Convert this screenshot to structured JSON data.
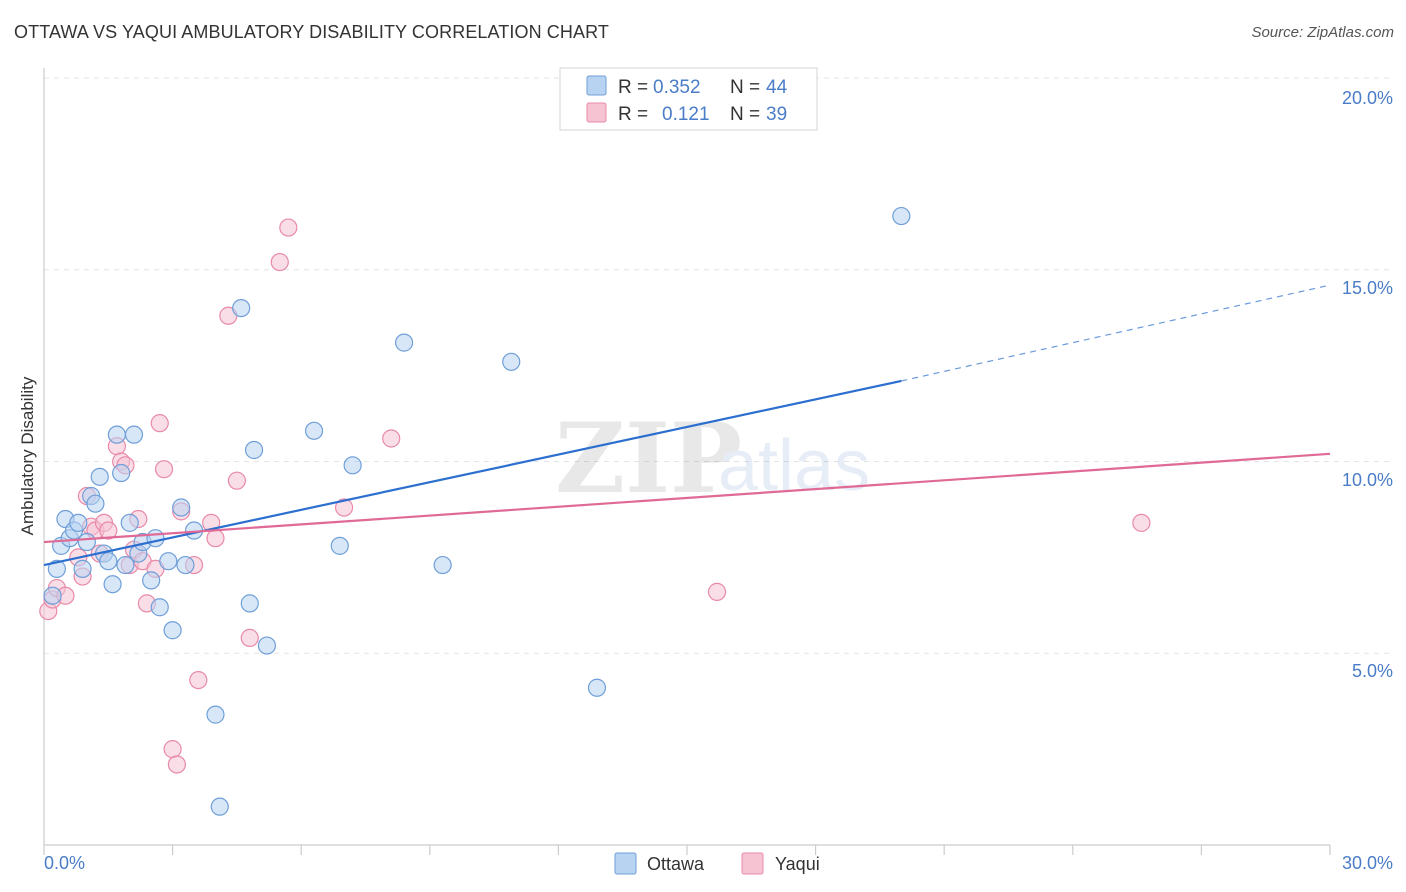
{
  "title": "OTTAWA VS YAQUI AMBULATORY DISABILITY CORRELATION CHART",
  "source": "Source: ZipAtlas.com",
  "watermark": {
    "zip": "ZIP",
    "atlas": "atlas"
  },
  "legend": {
    "r_label": "R =",
    "n_label": "N =",
    "entries": [
      {
        "name": "Ottawa",
        "r": "0.352",
        "n": "44"
      },
      {
        "name": "Yaqui",
        "r": "0.121",
        "n": "39"
      }
    ]
  },
  "colors": {
    "ottawa_fill": "#b8d3f2",
    "ottawa_stroke": "#6f9fd8",
    "ottawa_line": "#2c6fcf",
    "yaqui_fill": "#f6c3d3",
    "yaqui_stroke": "#e88aa8",
    "yaqui_line": "#e06a96",
    "tick_label": "#4a7cc7"
  },
  "chart_data": {
    "type": "scatter",
    "title": "OTTAWA VS YAQUI AMBULATORY DISABILITY CORRELATION CHART",
    "xlabel": "",
    "ylabel": "Ambulatory Disability",
    "xlim": [
      0,
      30
    ],
    "ylim": [
      0,
      20
    ],
    "x_tick_labels": [
      {
        "value": 0,
        "label": "0.0%"
      },
      {
        "value": 30,
        "label": "30.0%"
      }
    ],
    "y_tick_labels": [
      {
        "value": 5,
        "label": "5.0%"
      },
      {
        "value": 10,
        "label": "10.0%"
      },
      {
        "value": 15,
        "label": "15.0%"
      },
      {
        "value": 20,
        "label": "20.0%"
      }
    ],
    "series": [
      {
        "name": "Ottawa",
        "trend": {
          "x0": 0,
          "y0": 7.3,
          "x1": 20.0,
          "y1": 12.1,
          "dashed_to_x": 30,
          "dashed_to_y": 14.6
        },
        "points": [
          [
            0.2,
            6.5
          ],
          [
            0.3,
            7.2
          ],
          [
            0.4,
            7.8
          ],
          [
            0.5,
            8.5
          ],
          [
            0.6,
            8.0
          ],
          [
            0.7,
            8.2
          ],
          [
            0.8,
            8.4
          ],
          [
            0.9,
            7.2
          ],
          [
            1.0,
            7.9
          ],
          [
            1.1,
            9.1
          ],
          [
            1.2,
            8.9
          ],
          [
            1.3,
            9.6
          ],
          [
            1.4,
            7.6
          ],
          [
            1.5,
            7.4
          ],
          [
            1.6,
            6.8
          ],
          [
            1.7,
            10.7
          ],
          [
            1.8,
            9.7
          ],
          [
            1.9,
            7.3
          ],
          [
            2.0,
            8.4
          ],
          [
            2.1,
            10.7
          ],
          [
            2.2,
            7.6
          ],
          [
            2.3,
            7.9
          ],
          [
            2.5,
            6.9
          ],
          [
            2.6,
            8.0
          ],
          [
            2.7,
            6.2
          ],
          [
            2.9,
            7.4
          ],
          [
            3.0,
            5.6
          ],
          [
            3.2,
            8.8
          ],
          [
            3.3,
            7.3
          ],
          [
            3.5,
            8.2
          ],
          [
            4.0,
            3.4
          ],
          [
            4.6,
            14.0
          ],
          [
            4.8,
            6.3
          ],
          [
            4.9,
            10.3
          ],
          [
            5.2,
            5.2
          ],
          [
            6.3,
            10.8
          ],
          [
            6.9,
            7.8
          ],
          [
            7.2,
            9.9
          ],
          [
            8.4,
            13.1
          ],
          [
            9.3,
            7.3
          ],
          [
            10.9,
            12.6
          ],
          [
            12.9,
            4.1
          ],
          [
            20.0,
            16.4
          ],
          [
            4.1,
            1.0
          ]
        ]
      },
      {
        "name": "Yaqui",
        "trend": {
          "x0": 0,
          "y0": 7.9,
          "x1": 30,
          "y1": 10.2
        },
        "points": [
          [
            0.1,
            6.1
          ],
          [
            0.2,
            6.4
          ],
          [
            0.3,
            6.7
          ],
          [
            0.5,
            6.5
          ],
          [
            0.8,
            7.5
          ],
          [
            0.9,
            7.0
          ],
          [
            1.0,
            9.1
          ],
          [
            1.1,
            8.3
          ],
          [
            1.2,
            8.2
          ],
          [
            1.3,
            7.6
          ],
          [
            1.4,
            8.4
          ],
          [
            1.5,
            8.2
          ],
          [
            1.7,
            10.4
          ],
          [
            1.8,
            10.0
          ],
          [
            1.9,
            9.9
          ],
          [
            2.0,
            7.3
          ],
          [
            2.1,
            7.7
          ],
          [
            2.2,
            8.5
          ],
          [
            2.3,
            7.4
          ],
          [
            2.4,
            6.3
          ],
          [
            2.6,
            7.2
          ],
          [
            2.7,
            11.0
          ],
          [
            2.8,
            9.8
          ],
          [
            3.0,
            2.5
          ],
          [
            3.1,
            2.1
          ],
          [
            3.2,
            8.7
          ],
          [
            3.5,
            7.3
          ],
          [
            3.6,
            4.3
          ],
          [
            3.9,
            8.4
          ],
          [
            4.0,
            8.0
          ],
          [
            4.3,
            13.8
          ],
          [
            4.5,
            9.5
          ],
          [
            4.8,
            5.4
          ],
          [
            5.5,
            15.2
          ],
          [
            5.7,
            16.1
          ],
          [
            7.0,
            8.8
          ],
          [
            8.1,
            10.6
          ],
          [
            15.7,
            6.6
          ],
          [
            25.6,
            8.4
          ]
        ]
      }
    ]
  }
}
